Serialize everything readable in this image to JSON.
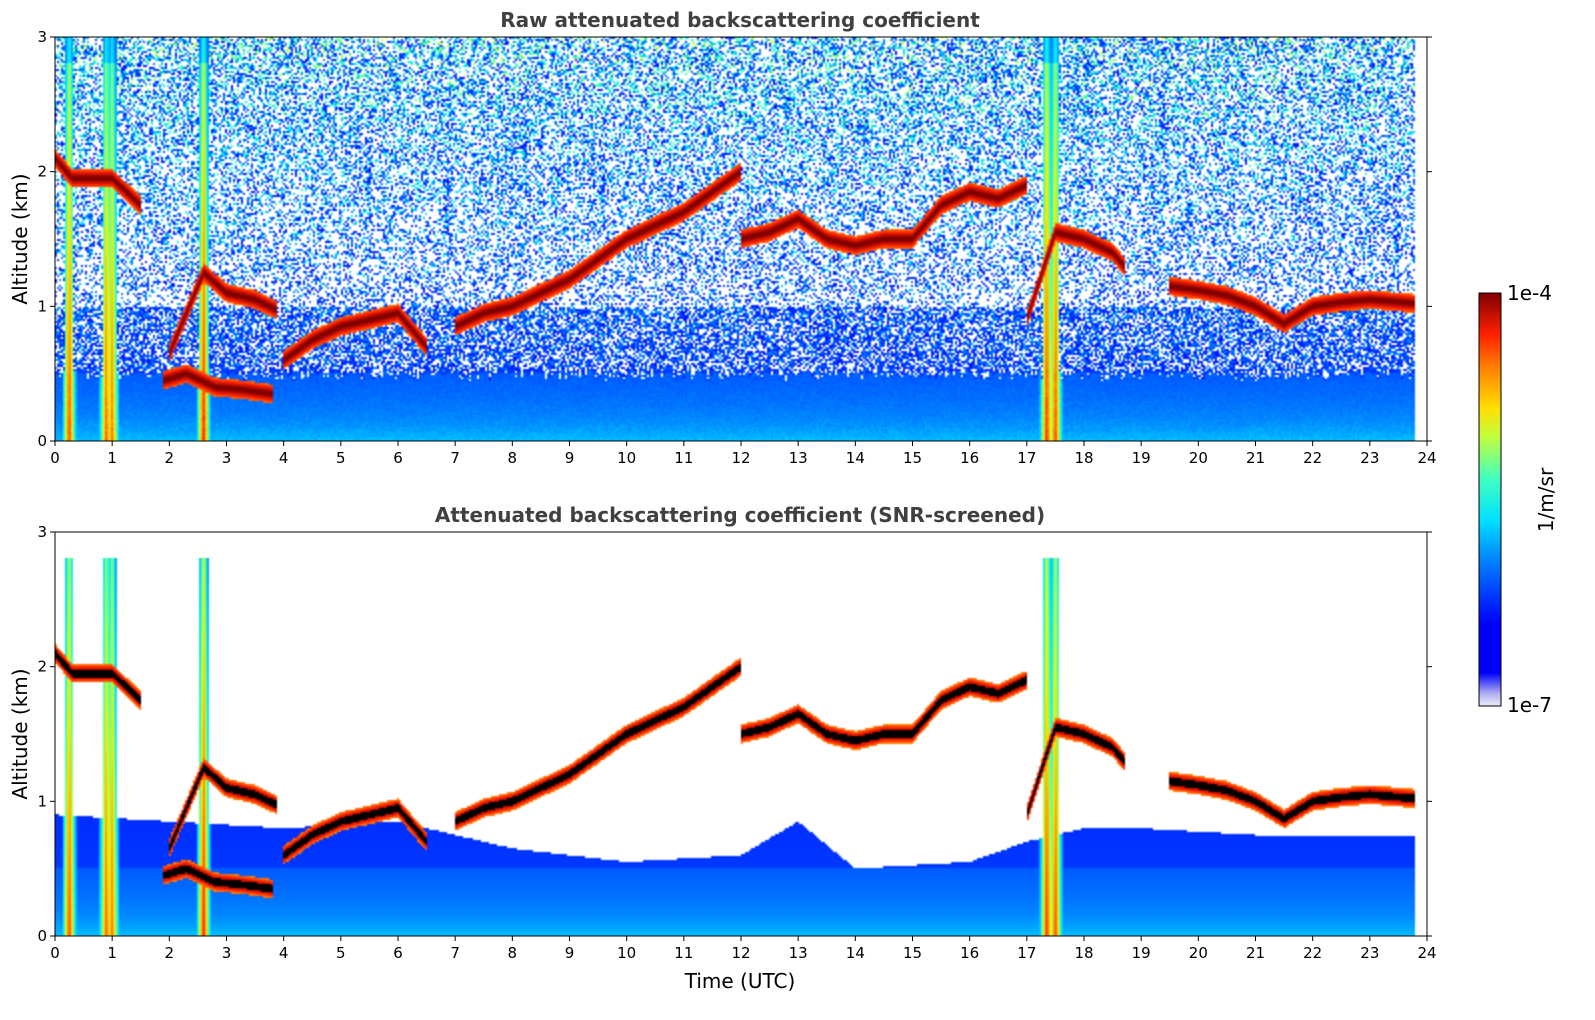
{
  "chart_data": [
    {
      "type": "heatmap",
      "title": "Raw attenuated backscattering coefficient",
      "xlabel": "",
      "ylabel": "Altitude (km)",
      "xlim": [
        0,
        24
      ],
      "ylim": [
        0,
        3
      ],
      "x_ticks": [
        "0",
        "1",
        "2",
        "3",
        "4",
        "5",
        "6",
        "7",
        "8",
        "9",
        "10",
        "11",
        "12",
        "13",
        "14",
        "15",
        "16",
        "17",
        "18",
        "19",
        "20",
        "21",
        "22",
        "23",
        "24"
      ],
      "y_ticks": [
        "0",
        "1",
        "2",
        "3"
      ],
      "grid": false,
      "data_extent_x": [
        0,
        23.8
      ],
      "colormap": "jet",
      "noise_level": 0.55,
      "vertical_streaks": [
        {
          "x": 0.25,
          "strength": 0.9
        },
        {
          "x": 0.9,
          "strength": 0.85
        },
        {
          "x": 1.0,
          "strength": 0.8
        },
        {
          "x": 2.6,
          "strength": 0.95
        },
        {
          "x": 17.35,
          "strength": 0.95
        },
        {
          "x": 17.5,
          "strength": 0.9
        }
      ],
      "cloud_layers": [
        {
          "t": [
            0.0,
            0.3,
            0.6,
            1.0,
            1.5
          ],
          "alt": [
            2.1,
            1.95,
            1.95,
            1.95,
            1.75
          ]
        },
        {
          "t": [
            1.9,
            2.3,
            2.8,
            3.3,
            3.8
          ],
          "alt": [
            0.45,
            0.5,
            0.4,
            0.38,
            0.35
          ]
        },
        {
          "t": [
            2.0,
            2.3,
            2.6,
            3.0,
            3.5,
            3.9
          ],
          "alt": [
            0.65,
            0.95,
            1.25,
            1.1,
            1.05,
            0.97
          ]
        },
        {
          "t": [
            4.0,
            4.5,
            5.0,
            5.5,
            6.0,
            6.5
          ],
          "alt": [
            0.6,
            0.75,
            0.85,
            0.9,
            0.95,
            0.7
          ]
        },
        {
          "t": [
            7.0,
            7.5,
            8.0,
            8.5,
            9.0,
            9.5,
            10.0,
            10.5,
            11.0,
            11.5,
            12.0
          ],
          "alt": [
            0.85,
            0.95,
            1.0,
            1.1,
            1.2,
            1.35,
            1.5,
            1.6,
            1.7,
            1.85,
            2.0
          ]
        },
        {
          "t": [
            12.0,
            12.5,
            13.0,
            13.5,
            14.0,
            14.5,
            15.0,
            15.5,
            16.0,
            16.5,
            17.0
          ],
          "alt": [
            1.5,
            1.55,
            1.65,
            1.5,
            1.45,
            1.5,
            1.5,
            1.75,
            1.85,
            1.8,
            1.9
          ]
        },
        {
          "t": [
            17.0,
            17.5,
            18.0,
            18.5,
            18.7
          ],
          "alt": [
            0.9,
            1.55,
            1.5,
            1.4,
            1.3
          ]
        },
        {
          "t": [
            19.5,
            20.0,
            20.5,
            21.0,
            21.5,
            22.0,
            22.5,
            23.0,
            23.8
          ],
          "alt": [
            1.15,
            1.12,
            1.08,
            1.0,
            0.87,
            1.0,
            1.03,
            1.05,
            1.02
          ]
        }
      ]
    },
    {
      "type": "heatmap",
      "title": "Attenuated backscattering coefficient (SNR-screened)",
      "xlabel": "Time (UTC)",
      "ylabel": "Altitude (km)",
      "xlim": [
        0,
        24
      ],
      "ylim": [
        0,
        3
      ],
      "x_ticks": [
        "0",
        "1",
        "2",
        "3",
        "4",
        "5",
        "6",
        "7",
        "8",
        "9",
        "10",
        "11",
        "12",
        "13",
        "14",
        "15",
        "16",
        "17",
        "18",
        "19",
        "20",
        "21",
        "22",
        "23",
        "24"
      ],
      "y_ticks": [
        "0",
        "1",
        "2",
        "3"
      ],
      "grid": false,
      "data_extent_x": [
        0,
        23.8
      ],
      "colormap": "jet",
      "screened": true,
      "screen_top_km": [
        {
          "t": 0,
          "alt": 0.9
        },
        {
          "t": 2,
          "alt": 0.85
        },
        {
          "t": 4,
          "alt": 0.8
        },
        {
          "t": 6,
          "alt": 0.85
        },
        {
          "t": 8,
          "alt": 0.65
        },
        {
          "t": 10,
          "alt": 0.55
        },
        {
          "t": 12,
          "alt": 0.6
        },
        {
          "t": 13,
          "alt": 0.85
        },
        {
          "t": 14,
          "alt": 0.5
        },
        {
          "t": 16,
          "alt": 0.55
        },
        {
          "t": 17,
          "alt": 0.7
        },
        {
          "t": 18,
          "alt": 0.8
        },
        {
          "t": 19,
          "alt": 0.8
        },
        {
          "t": 21,
          "alt": 0.75
        },
        {
          "t": 23.8,
          "alt": 0.75
        }
      ],
      "vertical_streaks": [
        {
          "x": 0.25,
          "strength": 0.9
        },
        {
          "x": 0.9,
          "strength": 0.85
        },
        {
          "x": 1.0,
          "strength": 0.8
        },
        {
          "x": 2.6,
          "strength": 0.95
        },
        {
          "x": 17.35,
          "strength": 0.95
        },
        {
          "x": 17.5,
          "strength": 0.9
        }
      ],
      "cloud_layers": [
        {
          "t": [
            0.0,
            0.3,
            0.6,
            1.0,
            1.5
          ],
          "alt": [
            2.1,
            1.95,
            1.95,
            1.95,
            1.75
          ]
        },
        {
          "t": [
            1.9,
            2.3,
            2.8,
            3.3,
            3.8
          ],
          "alt": [
            0.45,
            0.5,
            0.4,
            0.38,
            0.35
          ]
        },
        {
          "t": [
            2.0,
            2.3,
            2.6,
            3.0,
            3.5,
            3.9
          ],
          "alt": [
            0.65,
            0.95,
            1.25,
            1.1,
            1.05,
            0.97
          ]
        },
        {
          "t": [
            4.0,
            4.5,
            5.0,
            5.5,
            6.0,
            6.5
          ],
          "alt": [
            0.6,
            0.75,
            0.85,
            0.9,
            0.95,
            0.7
          ]
        },
        {
          "t": [
            7.0,
            7.5,
            8.0,
            8.5,
            9.0,
            9.5,
            10.0,
            10.5,
            11.0,
            11.5,
            12.0
          ],
          "alt": [
            0.85,
            0.95,
            1.0,
            1.1,
            1.2,
            1.35,
            1.5,
            1.6,
            1.7,
            1.85,
            2.0
          ]
        },
        {
          "t": [
            12.0,
            12.5,
            13.0,
            13.5,
            14.0,
            14.5,
            15.0,
            15.5,
            16.0,
            16.5,
            17.0
          ],
          "alt": [
            1.5,
            1.55,
            1.65,
            1.5,
            1.45,
            1.5,
            1.5,
            1.75,
            1.85,
            1.8,
            1.9
          ]
        },
        {
          "t": [
            17.0,
            17.5,
            18.0,
            18.5,
            18.7
          ],
          "alt": [
            0.9,
            1.55,
            1.5,
            1.4,
            1.3
          ]
        },
        {
          "t": [
            19.5,
            20.0,
            20.5,
            21.0,
            21.5,
            22.0,
            22.5,
            23.0,
            23.8
          ],
          "alt": [
            1.15,
            1.12,
            1.08,
            1.0,
            0.87,
            1.0,
            1.03,
            1.05,
            1.02
          ]
        }
      ]
    }
  ],
  "colorbar": {
    "label": "1/m/sr",
    "max_label": "1e-4",
    "min_label": "1e-7",
    "colormap": "jet",
    "min_value": 1e-07,
    "max_value": 0.0001,
    "scale": "log"
  }
}
